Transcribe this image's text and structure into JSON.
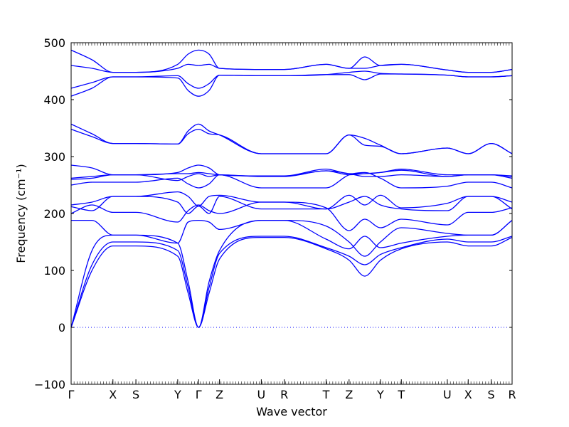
{
  "chart_data": {
    "type": "line",
    "title": "",
    "xlabel": "Wave vector",
    "ylabel": "Frequency (cm⁻¹)",
    "ylim": [
      -100,
      500
    ],
    "yticks": [
      -100,
      0,
      100,
      200,
      300,
      400,
      500
    ],
    "grid": false,
    "legend": "none",
    "line_color": "#0000ff",
    "zero_line_color": "#0000ff",
    "high_symmetry_points": [
      {
        "label": "Γ",
        "x": 0.0
      },
      {
        "label": "X",
        "x": 0.4
      },
      {
        "label": "S",
        "x": 0.62
      },
      {
        "label": "Y",
        "x": 1.02
      },
      {
        "label": "Γ",
        "x": 1.22
      },
      {
        "label": "Z",
        "x": 1.42
      },
      {
        "label": "U",
        "x": 1.82
      },
      {
        "label": "R",
        "x": 2.04
      },
      {
        "label": "T",
        "x": 2.44
      },
      {
        "label": "Z",
        "x": 2.66
      },
      {
        "label": "Y",
        "x": 2.96
      },
      {
        "label": "T",
        "x": 3.16
      },
      {
        "label": "U",
        "x": 3.6
      },
      {
        "label": "X",
        "x": 3.8
      },
      {
        "label": "S",
        "x": 4.02
      },
      {
        "label": "R",
        "x": 4.22
      }
    ],
    "x_range": [
      0,
      4.22
    ],
    "series_x": [
      0,
      0.2,
      0.4,
      0.62,
      1.02,
      1.12,
      1.22,
      1.32,
      1.42,
      1.82,
      2.04,
      2.44,
      2.66,
      2.81,
      2.96,
      3.16,
      3.6,
      3.8,
      4.02,
      4.22
    ],
    "series": [
      {
        "values": [
          0,
          100,
          143,
          143,
          125,
          60,
          0,
          60,
          120,
          158,
          158,
          138,
          118,
          90,
          118,
          138,
          150,
          143,
          143,
          158
        ]
      },
      {
        "values": [
          0,
          110,
          150,
          150,
          135,
          70,
          0,
          70,
          130,
          160,
          160,
          140,
          125,
          110,
          128,
          140,
          155,
          150,
          150,
          160
        ]
      },
      {
        "values": [
          0,
          135,
          162,
          162,
          148,
          80,
          0,
          80,
          135,
          188,
          188,
          155,
          138,
          160,
          140,
          148,
          160,
          162,
          162,
          188
        ]
      },
      {
        "values": [
          188,
          188,
          162,
          162,
          148,
          185,
          188,
          185,
          172,
          188,
          188,
          178,
          150,
          125,
          150,
          175,
          165,
          162,
          162,
          188
        ]
      },
      {
        "values": [
          200,
          215,
          202,
          202,
          185,
          205,
          215,
          205,
          200,
          220,
          220,
          210,
          170,
          190,
          175,
          190,
          180,
          202,
          202,
          210
        ]
      },
      {
        "values": [
          212,
          205,
          230,
          230,
          220,
          200,
          213,
          200,
          230,
          208,
          208,
          208,
          220,
          230,
          215,
          208,
          205,
          230,
          230,
          220
        ]
      },
      {
        "values": [
          215,
          220,
          230,
          230,
          238,
          230,
          213,
          230,
          232,
          220,
          220,
          208,
          232,
          215,
          232,
          210,
          218,
          230,
          230,
          208
        ]
      },
      {
        "values": [
          250,
          255,
          255,
          255,
          262,
          252,
          245,
          252,
          268,
          245,
          245,
          245,
          268,
          272,
          262,
          245,
          248,
          255,
          255,
          245
        ]
      },
      {
        "values": [
          260,
          262,
          268,
          268,
          258,
          265,
          270,
          265,
          268,
          265,
          265,
          275,
          270,
          265,
          265,
          268,
          265,
          268,
          268,
          262
        ]
      },
      {
        "values": [
          262,
          265,
          268,
          268,
          270,
          270,
          272,
          270,
          268,
          266,
          266,
          275,
          268,
          270,
          272,
          276,
          265,
          268,
          268,
          265
        ]
      },
      {
        "values": [
          285,
          280,
          268,
          268,
          272,
          280,
          285,
          280,
          268,
          266,
          266,
          278,
          270,
          270,
          272,
          278,
          268,
          268,
          268,
          266
        ]
      },
      {
        "values": [
          348,
          335,
          323,
          323,
          322,
          340,
          348,
          340,
          338,
          305,
          305,
          305,
          338,
          320,
          318,
          305,
          315,
          305,
          323,
          305
        ]
      },
      {
        "values": [
          357,
          340,
          323,
          323,
          322,
          345,
          357,
          345,
          338,
          305,
          305,
          305,
          338,
          332,
          320,
          305,
          315,
          305,
          323,
          305
        ]
      },
      {
        "values": [
          406,
          420,
          440,
          440,
          438,
          416,
          406,
          416,
          443,
          442,
          442,
          444,
          444,
          435,
          445,
          445,
          443,
          440,
          440,
          442
        ]
      },
      {
        "values": [
          420,
          430,
          440,
          440,
          442,
          428,
          420,
          428,
          443,
          442,
          442,
          444,
          448,
          450,
          446,
          445,
          443,
          440,
          440,
          442
        ]
      },
      {
        "values": [
          460,
          455,
          448,
          448,
          455,
          462,
          460,
          462,
          455,
          453,
          453,
          462,
          455,
          455,
          460,
          462,
          452,
          448,
          448,
          453
        ]
      },
      {
        "values": [
          487,
          470,
          448,
          448,
          462,
          480,
          487,
          480,
          455,
          453,
          453,
          462,
          455,
          475,
          460,
          462,
          452,
          448,
          448,
          453
        ]
      }
    ]
  }
}
